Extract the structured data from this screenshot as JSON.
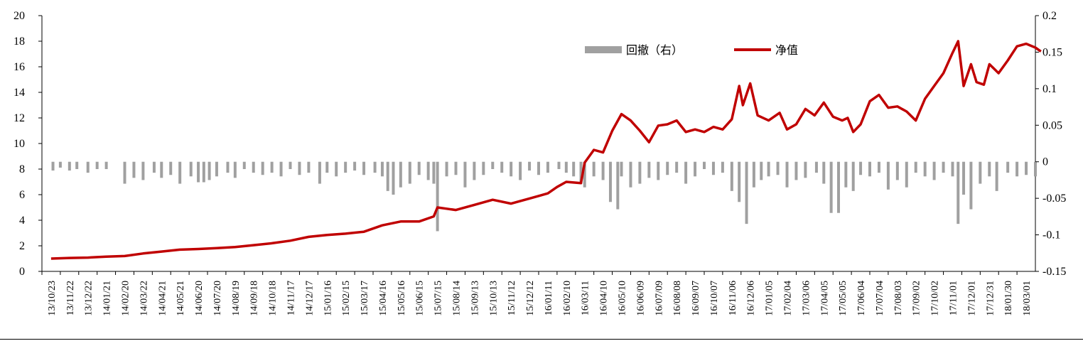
{
  "chart_data": {
    "type": "bar+line",
    "title": "",
    "legend": {
      "position": "top-right",
      "items": [
        {
          "name": "回撤（右）",
          "color": "#a0a0a0",
          "kind": "bar"
        },
        {
          "name": "净值",
          "color": "#c00000",
          "kind": "line"
        }
      ]
    },
    "left_axis": {
      "ylim": [
        0,
        20
      ],
      "ticks": [
        "0",
        "2",
        "4",
        "6",
        "8",
        "10",
        "12",
        "14",
        "16",
        "18",
        "20"
      ]
    },
    "right_axis": {
      "ylim": [
        -0.15,
        0.2
      ],
      "ticks": [
        "-0.15",
        "-0.1",
        "-0.05",
        "0",
        "0.05",
        "0.1",
        "0.15",
        "0.2"
      ]
    },
    "x_tick_labels": [
      "13/10/23",
      "13/11/22",
      "13/12/22",
      "14/01/21",
      "14/02/20",
      "14/03/22",
      "14/04/21",
      "14/05/21",
      "14/06/20",
      "14/07/20",
      "14/08/19",
      "14/09/18",
      "14/10/18",
      "14/11/17",
      "14/12/17",
      "15/01/16",
      "15/02/15",
      "15/03/17",
      "15/04/16",
      "15/05/16",
      "15/06/15",
      "15/07/15",
      "15/08/14",
      "15/09/13",
      "15/10/13",
      "15/11/12",
      "15/12/12",
      "16/01/11",
      "16/02/10",
      "16/03/11",
      "16/04/10",
      "16/05/10",
      "16/06/09",
      "16/07/09",
      "16/08/08",
      "16/09/07",
      "16/10/07",
      "16/11/06",
      "16/12/06",
      "17/01/05",
      "17/02/04",
      "17/03/06",
      "17/04/05",
      "17/05/05",
      "17/06/04",
      "17/07/04",
      "17/08/03",
      "17/09/02",
      "17/10/02",
      "17/11/01",
      "17/12/01",
      "17/12/31",
      "18/01/30",
      "18/03/01"
    ],
    "series": [
      {
        "name": "净值",
        "axis": "left",
        "points": [
          [
            0,
            1.0
          ],
          [
            1,
            1.05
          ],
          [
            2,
            1.08
          ],
          [
            3,
            1.15
          ],
          [
            4,
            1.2
          ],
          [
            5,
            1.4
          ],
          [
            6,
            1.55
          ],
          [
            7,
            1.7
          ],
          [
            8,
            1.75
          ],
          [
            9,
            1.82
          ],
          [
            10,
            1.9
          ],
          [
            11,
            2.05
          ],
          [
            12,
            2.2
          ],
          [
            13,
            2.4
          ],
          [
            14,
            2.7
          ],
          [
            15,
            2.85
          ],
          [
            16,
            2.95
          ],
          [
            17,
            3.1
          ],
          [
            18,
            3.6
          ],
          [
            19,
            3.9
          ],
          [
            20,
            3.9
          ],
          [
            20.8,
            4.3
          ],
          [
            21,
            5.0
          ],
          [
            21.5,
            4.9
          ],
          [
            22,
            4.8
          ],
          [
            23,
            5.2
          ],
          [
            24,
            5.6
          ],
          [
            25,
            5.3
          ],
          [
            26,
            5.7
          ],
          [
            27,
            6.1
          ],
          [
            27.5,
            6.6
          ],
          [
            28,
            7.0
          ],
          [
            28.8,
            6.9
          ],
          [
            29,
            8.5
          ],
          [
            29.5,
            9.5
          ],
          [
            30,
            9.3
          ],
          [
            30.5,
            11.0
          ],
          [
            31,
            12.3
          ],
          [
            31.5,
            11.8
          ],
          [
            32,
            11.0
          ],
          [
            32.5,
            10.1
          ],
          [
            33,
            11.4
          ],
          [
            33.5,
            11.5
          ],
          [
            34,
            11.8
          ],
          [
            34.5,
            10.9
          ],
          [
            35,
            11.1
          ],
          [
            35.5,
            10.9
          ],
          [
            36,
            11.3
          ],
          [
            36.5,
            11.1
          ],
          [
            37,
            11.9
          ],
          [
            37.4,
            14.5
          ],
          [
            37.6,
            13.0
          ],
          [
            38,
            14.7
          ],
          [
            38.4,
            12.2
          ],
          [
            39,
            11.8
          ],
          [
            39.6,
            12.4
          ],
          [
            40,
            11.1
          ],
          [
            40.5,
            11.5
          ],
          [
            41,
            12.7
          ],
          [
            41.5,
            12.2
          ],
          [
            42,
            13.2
          ],
          [
            42.5,
            12.1
          ],
          [
            43,
            11.8
          ],
          [
            43.3,
            12.0
          ],
          [
            43.6,
            10.9
          ],
          [
            44,
            11.5
          ],
          [
            44.5,
            13.3
          ],
          [
            45,
            13.8
          ],
          [
            45.5,
            12.8
          ],
          [
            46,
            12.9
          ],
          [
            46.5,
            12.5
          ],
          [
            47,
            11.8
          ],
          [
            47.5,
            13.5
          ],
          [
            48,
            14.5
          ],
          [
            48.5,
            15.5
          ],
          [
            49,
            17.1
          ],
          [
            49.3,
            18.0
          ],
          [
            49.6,
            14.5
          ],
          [
            50,
            16.2
          ],
          [
            50.3,
            14.8
          ],
          [
            50.7,
            14.6
          ],
          [
            51,
            16.2
          ],
          [
            51.5,
            15.5
          ],
          [
            52,
            16.5
          ],
          [
            52.5,
            17.6
          ],
          [
            53,
            17.8
          ],
          [
            53.5,
            17.5
          ],
          [
            53.8,
            17.2
          ]
        ]
      },
      {
        "name": "回撤（右）",
        "axis": "right",
        "bars": [
          [
            0.1,
            -0.012
          ],
          [
            0.5,
            -0.008
          ],
          [
            1,
            -0.012
          ],
          [
            1.4,
            -0.01
          ],
          [
            2,
            -0.015
          ],
          [
            2.5,
            -0.01
          ],
          [
            3,
            -0.01
          ],
          [
            4,
            -0.03
          ],
          [
            4.5,
            -0.022
          ],
          [
            5,
            -0.025
          ],
          [
            5.6,
            -0.015
          ],
          [
            6,
            -0.022
          ],
          [
            6.5,
            -0.018
          ],
          [
            7,
            -0.03
          ],
          [
            7.6,
            -0.02
          ],
          [
            8,
            -0.028
          ],
          [
            8.3,
            -0.028
          ],
          [
            8.6,
            -0.025
          ],
          [
            9,
            -0.02
          ],
          [
            9.6,
            -0.015
          ],
          [
            10,
            -0.022
          ],
          [
            10.5,
            -0.01
          ],
          [
            11,
            -0.015
          ],
          [
            11.5,
            -0.018
          ],
          [
            12,
            -0.015
          ],
          [
            12.5,
            -0.02
          ],
          [
            13,
            -0.01
          ],
          [
            13.5,
            -0.018
          ],
          [
            14,
            -0.015
          ],
          [
            14.6,
            -0.03
          ],
          [
            15,
            -0.015
          ],
          [
            15.5,
            -0.02
          ],
          [
            16,
            -0.015
          ],
          [
            16.5,
            -0.012
          ],
          [
            17,
            -0.018
          ],
          [
            17.6,
            -0.015
          ],
          [
            18,
            -0.02
          ],
          [
            18.3,
            -0.04
          ],
          [
            18.6,
            -0.045
          ],
          [
            19,
            -0.035
          ],
          [
            19.5,
            -0.03
          ],
          [
            20,
            -0.018
          ],
          [
            20.5,
            -0.025
          ],
          [
            20.8,
            -0.03
          ],
          [
            21,
            -0.095
          ],
          [
            21.5,
            -0.02
          ],
          [
            22,
            -0.018
          ],
          [
            22.5,
            -0.035
          ],
          [
            23,
            -0.025
          ],
          [
            23.5,
            -0.018
          ],
          [
            24,
            -0.01
          ],
          [
            24.5,
            -0.015
          ],
          [
            25,
            -0.02
          ],
          [
            25.5,
            -0.025
          ],
          [
            26,
            -0.012
          ],
          [
            26.5,
            -0.018
          ],
          [
            27,
            -0.015
          ],
          [
            27.6,
            -0.01
          ],
          [
            28,
            -0.015
          ],
          [
            28.4,
            -0.02
          ],
          [
            28.8,
            -0.03
          ],
          [
            29,
            -0.035
          ],
          [
            29.5,
            -0.02
          ],
          [
            30,
            -0.025
          ],
          [
            30.4,
            -0.055
          ],
          [
            30.8,
            -0.065
          ],
          [
            31,
            -0.02
          ],
          [
            31.5,
            -0.035
          ],
          [
            32,
            -0.03
          ],
          [
            32.5,
            -0.022
          ],
          [
            33,
            -0.025
          ],
          [
            33.5,
            -0.018
          ],
          [
            34,
            -0.015
          ],
          [
            34.5,
            -0.03
          ],
          [
            35,
            -0.02
          ],
          [
            35.5,
            -0.01
          ],
          [
            36,
            -0.018
          ],
          [
            36.5,
            -0.015
          ],
          [
            37,
            -0.04
          ],
          [
            37.4,
            -0.055
          ],
          [
            37.8,
            -0.085
          ],
          [
            38.2,
            -0.035
          ],
          [
            38.6,
            -0.025
          ],
          [
            39,
            -0.02
          ],
          [
            39.5,
            -0.018
          ],
          [
            40,
            -0.035
          ],
          [
            40.5,
            -0.025
          ],
          [
            41,
            -0.022
          ],
          [
            41.6,
            -0.015
          ],
          [
            42,
            -0.03
          ],
          [
            42.4,
            -0.07
          ],
          [
            42.8,
            -0.07
          ],
          [
            43.2,
            -0.035
          ],
          [
            43.6,
            -0.04
          ],
          [
            44,
            -0.018
          ],
          [
            44.5,
            -0.02
          ],
          [
            45,
            -0.015
          ],
          [
            45.5,
            -0.038
          ],
          [
            46,
            -0.025
          ],
          [
            46.5,
            -0.035
          ],
          [
            47,
            -0.015
          ],
          [
            47.5,
            -0.02
          ],
          [
            48,
            -0.025
          ],
          [
            48.5,
            -0.015
          ],
          [
            49,
            -0.02
          ],
          [
            49.3,
            -0.085
          ],
          [
            49.6,
            -0.045
          ],
          [
            50,
            -0.065
          ],
          [
            50.5,
            -0.03
          ],
          [
            51,
            -0.02
          ],
          [
            51.4,
            -0.04
          ],
          [
            52,
            -0.015
          ],
          [
            52.5,
            -0.02
          ],
          [
            53,
            -0.018
          ],
          [
            53.5,
            -0.02
          ]
        ]
      }
    ]
  }
}
